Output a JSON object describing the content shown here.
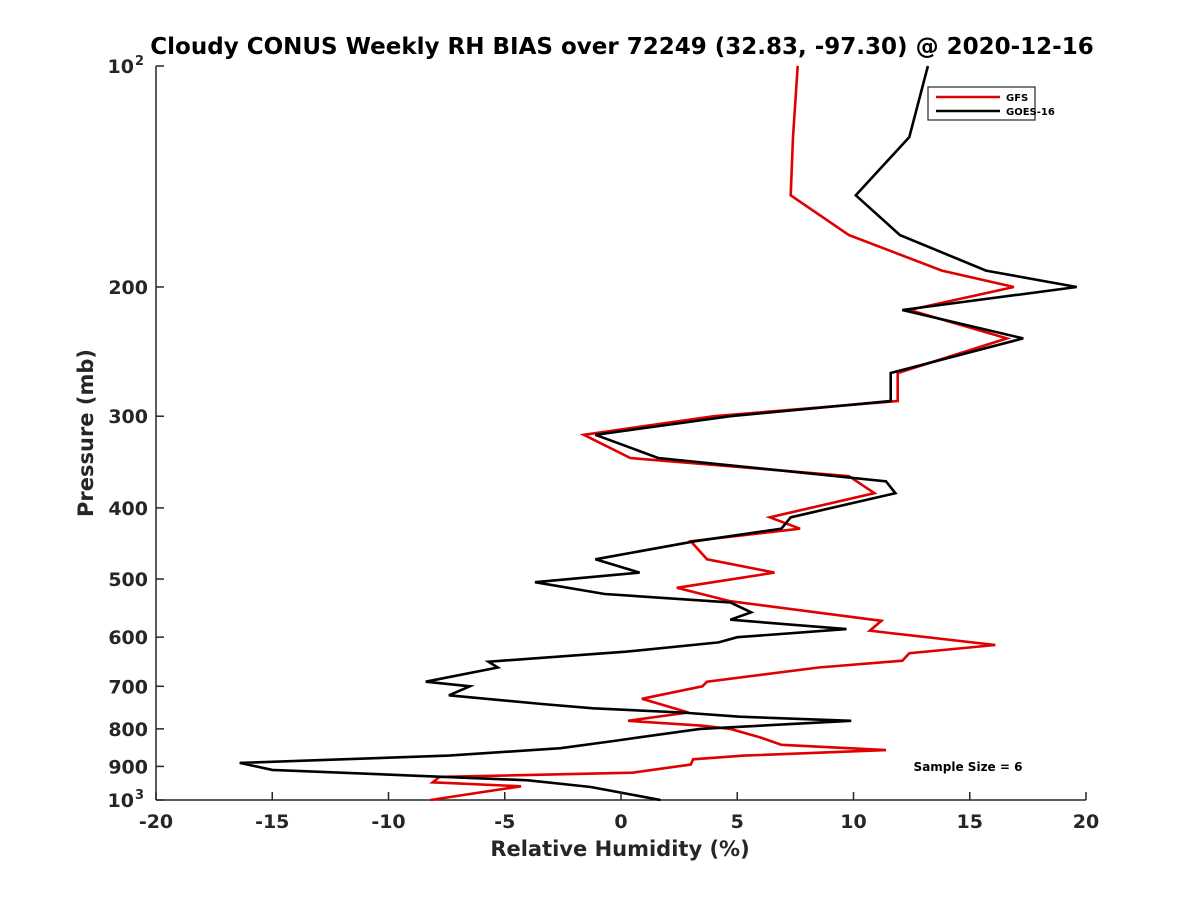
{
  "chart_data": {
    "type": "line",
    "title": "Cloudy CONUS Weekly RH BIAS over 72249 (32.83, -97.30) @ 2020-12-16",
    "xlabel": "Relative Humidity (%)",
    "ylabel": "Pressure (mb)",
    "xlim": [
      -20,
      20
    ],
    "ylim": [
      100,
      1000
    ],
    "y_scale": "log",
    "y_reversed": true,
    "x_ticks": [
      "-20",
      "-15",
      "-10",
      "-5",
      "0",
      "5",
      "10",
      "15",
      "20"
    ],
    "y_ticks": [
      {
        "value": 100,
        "label": "10",
        "exp": "2"
      },
      {
        "value": 200,
        "label": "200",
        "exp": ""
      },
      {
        "value": 300,
        "label": "300",
        "exp": ""
      },
      {
        "value": 400,
        "label": "400",
        "exp": ""
      },
      {
        "value": 500,
        "label": "500",
        "exp": ""
      },
      {
        "value": 600,
        "label": "600",
        "exp": ""
      },
      {
        "value": 700,
        "label": "700",
        "exp": ""
      },
      {
        "value": 800,
        "label": "800",
        "exp": ""
      },
      {
        "value": 900,
        "label": "900",
        "exp": ""
      },
      {
        "value": 1000,
        "label": "10",
        "exp": "3"
      }
    ],
    "grid": false,
    "legend_position": "top-right",
    "annotation": "Sample Size = 6",
    "series": [
      {
        "name": "GFS",
        "color": "#e00000",
        "points": [
          [
            7.6,
            100
          ],
          [
            7.4,
            125
          ],
          [
            7.3,
            150
          ],
          [
            9.8,
            170
          ],
          [
            13.8,
            190
          ],
          [
            16.9,
            200
          ],
          [
            12.4,
            215
          ],
          [
            16.6,
            235
          ],
          [
            11.9,
            262
          ],
          [
            11.9,
            286
          ],
          [
            4.0,
            300
          ],
          [
            -1.6,
            318
          ],
          [
            0.4,
            342
          ],
          [
            9.8,
            362
          ],
          [
            10.9,
            382
          ],
          [
            6.4,
            412
          ],
          [
            7.7,
            427
          ],
          [
            3.0,
            444
          ],
          [
            3.7,
            470
          ],
          [
            6.6,
            490
          ],
          [
            2.4,
            514
          ],
          [
            4.7,
            536
          ],
          [
            11.2,
            570
          ],
          [
            10.7,
            588
          ],
          [
            16.1,
            615
          ],
          [
            12.4,
            631
          ],
          [
            12.1,
            646
          ],
          [
            8.5,
            660
          ],
          [
            3.7,
            690
          ],
          [
            3.5,
            700
          ],
          [
            0.9,
            728
          ],
          [
            2.9,
            760
          ],
          [
            0.3,
            780
          ],
          [
            3.5,
            792
          ],
          [
            4.7,
            800
          ],
          [
            6.0,
            822
          ],
          [
            6.9,
            841
          ],
          [
            11.4,
            855
          ],
          [
            5.3,
            870
          ],
          [
            3.1,
            880
          ],
          [
            3.0,
            895
          ],
          [
            0.5,
            918
          ],
          [
            -7.8,
            930
          ],
          [
            -8.1,
            946
          ],
          [
            -4.3,
            958
          ],
          [
            -8.2,
            1000
          ]
        ]
      },
      {
        "name": "GOES-16",
        "color": "#000000",
        "points": [
          [
            13.2,
            100
          ],
          [
            12.4,
            125
          ],
          [
            10.1,
            150
          ],
          [
            12.0,
            170
          ],
          [
            15.7,
            190
          ],
          [
            19.6,
            200
          ],
          [
            12.1,
            215
          ],
          [
            17.3,
            235
          ],
          [
            11.6,
            262
          ],
          [
            11.6,
            286
          ],
          [
            4.7,
            300
          ],
          [
            -1.1,
            318
          ],
          [
            1.6,
            342
          ],
          [
            11.4,
            368
          ],
          [
            11.8,
            382
          ],
          [
            7.3,
            412
          ],
          [
            6.9,
            427
          ],
          [
            3.2,
            444
          ],
          [
            -1.1,
            470
          ],
          [
            0.8,
            490
          ],
          [
            -3.7,
            505
          ],
          [
            -0.7,
            524
          ],
          [
            4.7,
            538
          ],
          [
            5.6,
            555
          ],
          [
            4.7,
            568
          ],
          [
            9.7,
            585
          ],
          [
            5.0,
            600
          ],
          [
            4.2,
            610
          ],
          [
            0.2,
            628
          ],
          [
            -5.7,
            648
          ],
          [
            -5.3,
            660
          ],
          [
            -8.4,
            690
          ],
          [
            -6.5,
            700
          ],
          [
            -7.4,
            720
          ],
          [
            -3.4,
            740
          ],
          [
            -1.2,
            750
          ],
          [
            2.6,
            760
          ],
          [
            5.1,
            770
          ],
          [
            9.9,
            780
          ],
          [
            3.4,
            800
          ],
          [
            -0.2,
            830
          ],
          [
            -2.6,
            850
          ],
          [
            -7.4,
            870
          ],
          [
            -16.4,
            890
          ],
          [
            -15.0,
            910
          ],
          [
            -4.0,
            940
          ],
          [
            -1.3,
            960
          ],
          [
            1.7,
            1000
          ]
        ]
      }
    ]
  }
}
